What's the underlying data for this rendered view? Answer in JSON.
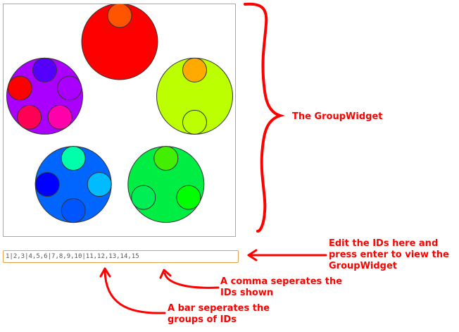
{
  "ids_input": {
    "value": "1|2,3|4,5,6|7,8,9,10|11,12,13,14,15"
  },
  "annotations": {
    "group_widget": "The GroupWidget",
    "edit_line1": "Edit the IDs here and",
    "edit_line2": "press enter to view the",
    "edit_line3": "GroupWidget",
    "comma_line1": "A comma seperates the",
    "comma_line2": "IDs shown",
    "bar_line1": "A bar seperates the",
    "bar_line2": "groups of IDs"
  },
  "colors": {
    "annotation": "#ff0000",
    "input_border": "#e3a44a",
    "panel_border": "#a9a9a9"
  },
  "groups": [
    {
      "id_list": "1",
      "color": "#ff0000",
      "members": [
        {
          "id": "1",
          "color": "#ff5500"
        }
      ]
    },
    {
      "id_list": "2,3",
      "color": "#bbff00",
      "members": [
        {
          "id": "2",
          "color": "#ffaa00"
        },
        {
          "id": "3",
          "color": "#bbff00"
        }
      ]
    },
    {
      "id_list": "4,5,6",
      "color": "#00ee44",
      "members": [
        {
          "id": "4",
          "color": "#44ee00"
        },
        {
          "id": "5",
          "color": "#00ff00"
        },
        {
          "id": "6",
          "color": "#00ee55"
        }
      ]
    },
    {
      "id_list": "7,8,9,10",
      "color": "#0066ff",
      "members": [
        {
          "id": "7",
          "color": "#00ffaa"
        },
        {
          "id": "8",
          "color": "#00bbff"
        },
        {
          "id": "9",
          "color": "#0055ff"
        },
        {
          "id": "10",
          "color": "#0000ff"
        }
      ]
    },
    {
      "id_list": "11,12,13,14,15",
      "color": "#aa00ff",
      "members": [
        {
          "id": "11",
          "color": "#5500ff"
        },
        {
          "id": "12",
          "color": "#aa00ff"
        },
        {
          "id": "13",
          "color": "#ff00aa"
        },
        {
          "id": "14",
          "color": "#ff0055"
        },
        {
          "id": "15",
          "color": "#ff0000"
        }
      ]
    }
  ]
}
